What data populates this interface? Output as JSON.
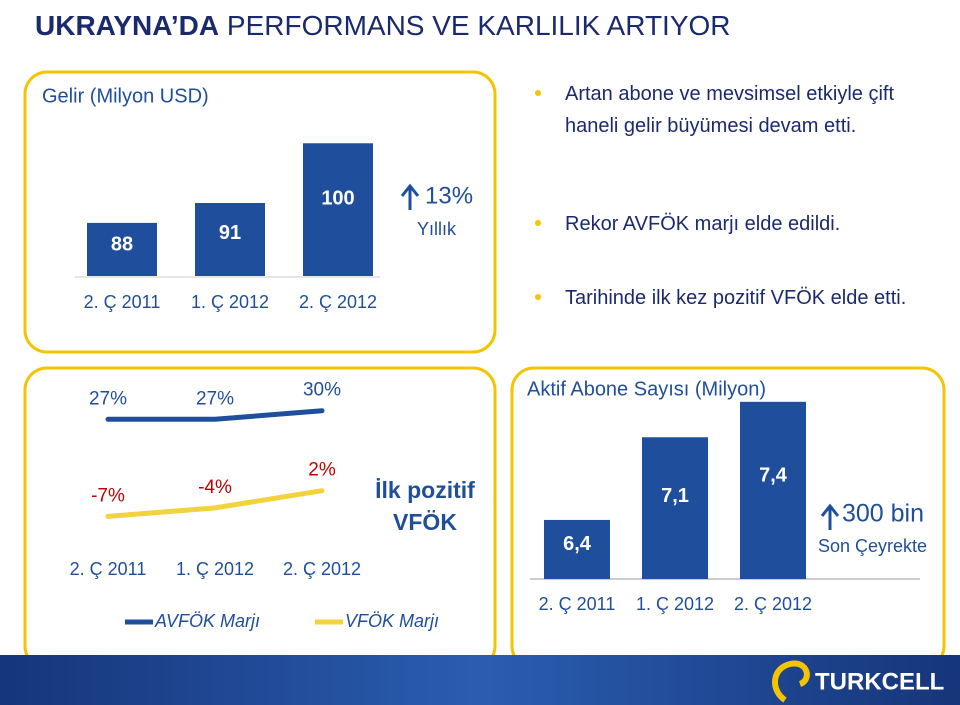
{
  "title_bold": "UKRAYNA’DA",
  "title": "PERFORMANS VE KARLILIK ARTIYOR",
  "bullets": [
    "Artan abone ve mevsimsel etkiyle çift haneli gelir büyümesi devam etti.",
    "Rekor AVFÖK marjı elde edildi.",
    "Tarihinde ilk kez pozitif VFÖK elde etti."
  ],
  "logo": "TURKCELL",
  "chart_data": [
    {
      "type": "bar",
      "title": "Gelir (Milyon USD)",
      "categories": [
        "2. Ç 2011",
        "1. Ç 2012",
        "2. Ç 2012"
      ],
      "values": [
        88,
        91,
        100
      ],
      "color": "#1f4e9c",
      "ylim": [
        80,
        102
      ],
      "growth": "13%",
      "growth_label": "Yıllık"
    },
    {
      "type": "line",
      "categories": [
        "2. Ç 2011",
        "1. Ç 2012",
        "2. Ç 2012"
      ],
      "ylim": [
        -10,
        32
      ],
      "series": [
        {
          "name": "AVFÖK Marjı",
          "color": "#1f4e9c",
          "values": [
            27,
            27,
            30
          ],
          "value_labels": [
            "27%",
            "27%",
            "30%"
          ]
        },
        {
          "name": "VFÖK Marjı",
          "color": "#f2d33c",
          "values": [
            -7,
            -4,
            2
          ],
          "value_labels": [
            "-7%",
            "-4%",
            "2%"
          ]
        }
      ],
      "annotation": "İlk pozitif VFÖK"
    },
    {
      "type": "bar",
      "title": "Aktif Abone Sayısı (Milyon)",
      "categories": [
        "2. Ç 2011",
        "1. Ç 2012",
        "2. Ç 2012"
      ],
      "values": [
        6.4,
        7.1,
        7.4
      ],
      "value_labels": [
        "6,4",
        "7,1",
        "7,4"
      ],
      "color": "#1f4e9c",
      "ylim": [
        5.9,
        7.5
      ],
      "growth": "300 bin",
      "growth_label": "Son Çeyrekte"
    }
  ]
}
